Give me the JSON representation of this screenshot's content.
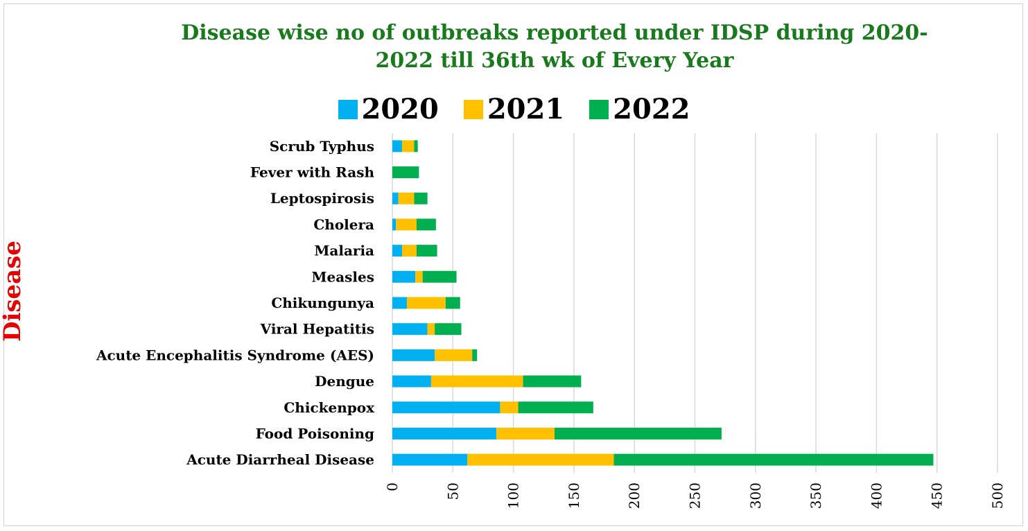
{
  "chart_data": {
    "type": "bar",
    "orientation": "horizontal",
    "stacked": true,
    "title": "Disease wise no of outbreaks reported under IDSP during  2020-2022 till 36th wk of Every Year",
    "title_lines": [
      "Disease wise no of outbreaks reported under IDSP during  2020-",
      "2022 till 36th wk of Every Year"
    ],
    "ylabel": "Disease",
    "xlabel": "",
    "xlim": [
      0,
      500
    ],
    "xticks": [
      0,
      50,
      100,
      150,
      200,
      250,
      300,
      350,
      400,
      450,
      500
    ],
    "grid": true,
    "legend_position": "top",
    "categories": [
      "Acute Diarrheal Disease",
      "Food Poisoning",
      "Chickenpox",
      "Dengue",
      "Acute Encephalitis Syndrome (AES)",
      "Viral Hepatitis",
      "Chikungunya",
      "Measles",
      "Malaria",
      "Cholera",
      "Leptospirosis",
      "Fever with Rash",
      "Scrub Typhus"
    ],
    "series": [
      {
        "name": "2020",
        "color": "#00b0f0",
        "values": [
          62,
          86,
          89,
          32,
          35,
          29,
          12,
          19,
          8,
          3,
          5,
          0,
          8
        ]
      },
      {
        "name": "2021",
        "color": "#ffc000",
        "values": [
          121,
          48,
          15,
          76,
          31,
          6,
          32,
          6,
          12,
          17,
          13,
          0,
          10
        ]
      },
      {
        "name": "2022",
        "color": "#00b050",
        "values": [
          264,
          138,
          62,
          48,
          4,
          22,
          12,
          28,
          17,
          16,
          11,
          22,
          3
        ]
      }
    ]
  }
}
